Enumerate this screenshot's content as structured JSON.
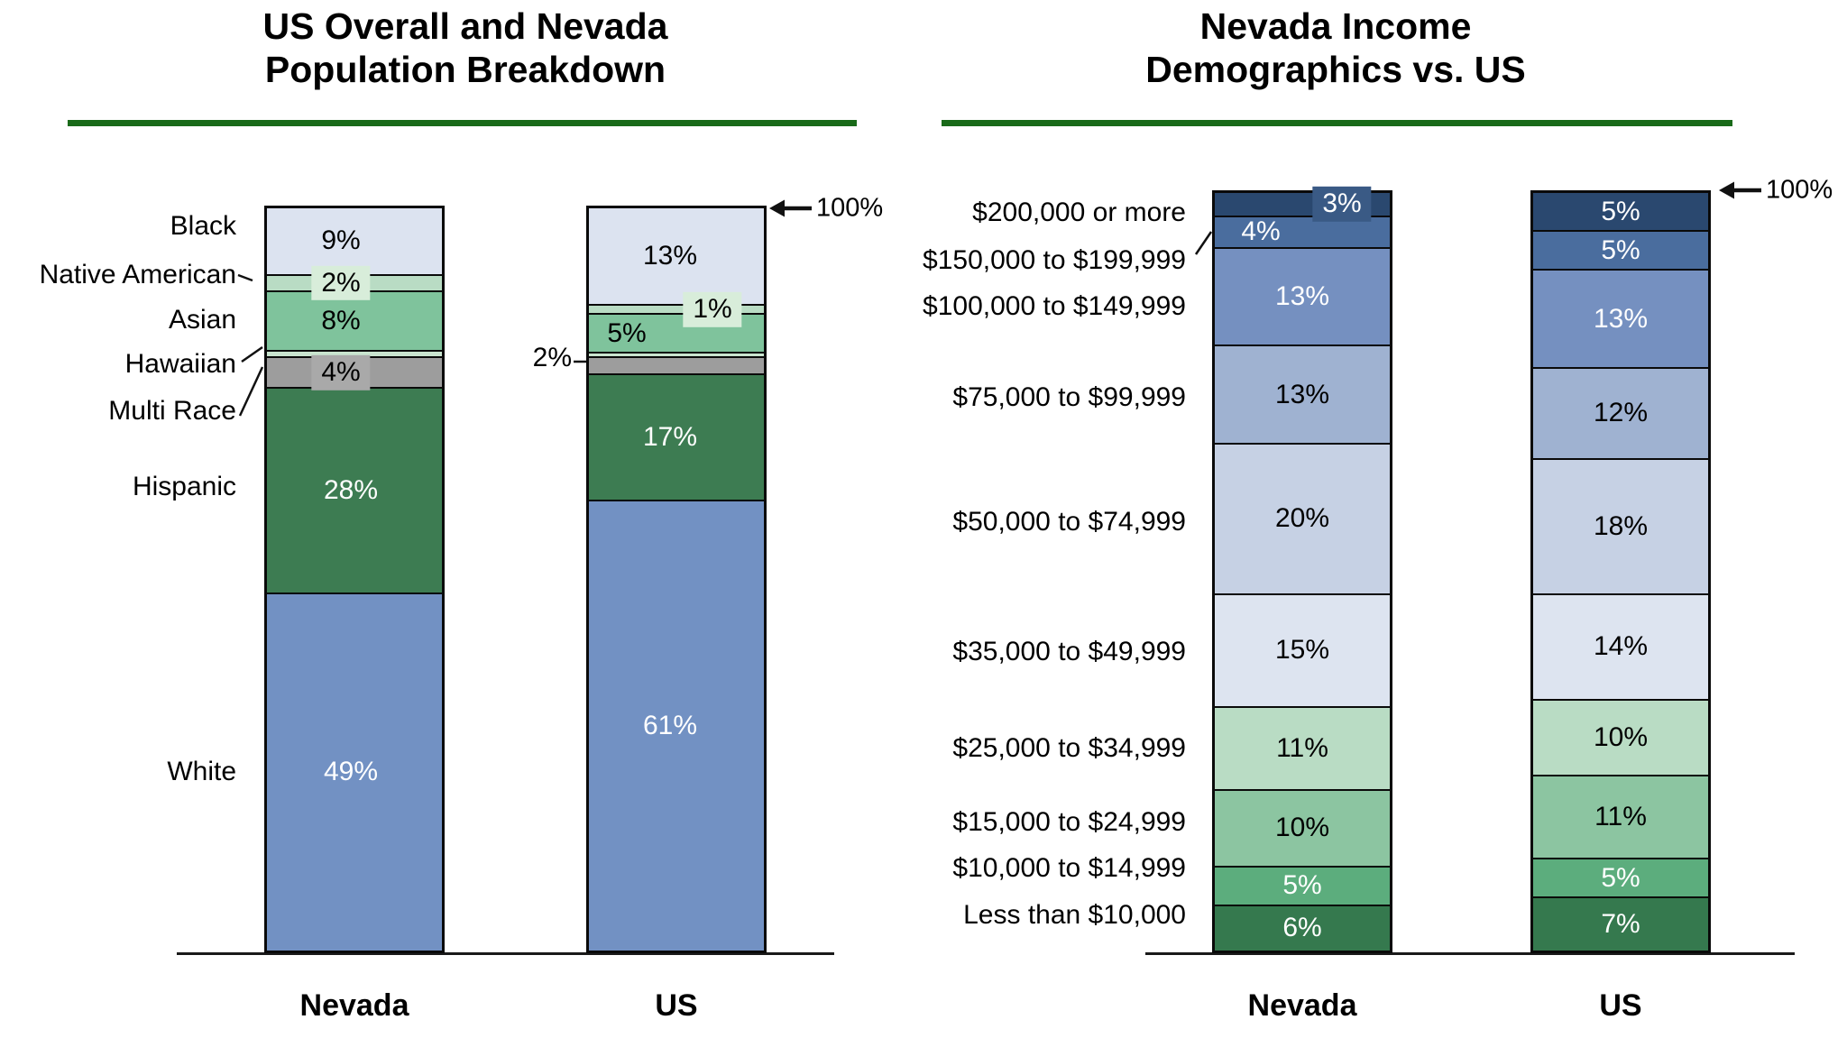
{
  "page": {
    "background": "#ffffff",
    "accent_green": "#196a19",
    "border_color": "#0a0a0a"
  },
  "chart_data": [
    {
      "type": "stacked-bar",
      "title": "US Overall and Nevada Population Breakdown",
      "title_lines": [
        "US Overall and Nevada",
        "Population Breakdown"
      ],
      "axis_annotation": "100%",
      "ylim": [
        0,
        100
      ],
      "stack_order": "top-to-bottom",
      "grid": false,
      "legend": "none (category labels at left of bars)",
      "categories": [
        "Black",
        "Native American",
        "Asian",
        "Hawaiian",
        "Multi Race",
        "Hispanic",
        "White"
      ],
      "colors": [
        "#dce3f0",
        "#b9dcc4",
        "#7fc39c",
        "#c9e4cf",
        "#9d9d9d",
        "#3d7c52",
        "#7291c3"
      ],
      "label_text_colors": [
        "#000000",
        "#000000",
        "#000000",
        null,
        "#000000",
        "#ffffff",
        "#ffffff"
      ],
      "series": [
        {
          "name": "Nevada",
          "values": [
            9,
            2,
            8,
            0.6,
            4,
            28,
            49
          ],
          "labels": [
            "9%",
            "2%",
            "8%",
            null,
            "4%",
            "28%",
            "49%"
          ],
          "label_styles": [
            "plain",
            "boxed",
            "plain",
            null,
            "boxed",
            "plain",
            "plain"
          ],
          "label_box_fills": [
            null,
            "#d8edda",
            null,
            null,
            "#a9a9a9",
            null,
            null
          ]
        },
        {
          "name": "US",
          "values": [
            13,
            1,
            5,
            0.4,
            2,
            17,
            61
          ],
          "labels": [
            "13%",
            "1%",
            "5%",
            null,
            "2%",
            "17%",
            "61%"
          ],
          "label_styles": [
            "plain",
            "boxed",
            "plain",
            null,
            "outside-left",
            "plain",
            "plain"
          ],
          "label_box_fills": [
            null,
            "#d8edda",
            null,
            null,
            null,
            null,
            null
          ]
        }
      ]
    },
    {
      "type": "stacked-bar",
      "title": "Nevada Income Demographics vs. US",
      "title_lines": [
        "Nevada Income",
        "Demographics vs. US"
      ],
      "axis_annotation": "100%",
      "ylim": [
        0,
        100
      ],
      "stack_order": "top-to-bottom",
      "grid": false,
      "legend": "none (income bracket labels at left of bars)",
      "categories": [
        "$200,000 or more",
        "$150,000 to $199,999",
        "$100,000 to $149,999",
        "$75,000 to $99,999",
        "$50,000 to $74,999",
        "$35,000 to $49,999",
        "$25,000 to $34,999",
        "$15,000 to $24,999",
        "$10,000 to $14,999",
        "Less than $10,000"
      ],
      "colors": [
        "#2a486f",
        "#4a6d9e",
        "#7590c0",
        "#9fb2d1",
        "#c6d1e4",
        "#dde4f0",
        "#b9dcc4",
        "#8cc5a1",
        "#5cad7d",
        "#35794e"
      ],
      "label_text_colors": [
        "#ffffff",
        "#ffffff",
        "#ffffff",
        "#000000",
        "#000000",
        "#000000",
        "#000000",
        "#000000",
        "#ffffff",
        "#ffffff"
      ],
      "series": [
        {
          "name": "Nevada",
          "values": [
            3,
            4,
            13,
            13,
            20,
            15,
            11,
            10,
            5,
            6
          ],
          "labels": [
            "3%",
            "4%",
            "13%",
            "13%",
            "20%",
            "15%",
            "11%",
            "10%",
            "5%",
            "6%"
          ],
          "label_styles": [
            "boxed",
            "plain",
            "plain",
            "plain",
            "plain",
            "plain",
            "plain",
            "plain",
            "plain",
            "plain"
          ],
          "label_box_fills": [
            "#3a5a85",
            null,
            null,
            null,
            null,
            null,
            null,
            null,
            null,
            null
          ]
        },
        {
          "name": "US",
          "values": [
            5,
            5,
            13,
            12,
            18,
            14,
            10,
            11,
            5,
            7
          ],
          "labels": [
            "5%",
            "5%",
            "13%",
            "12%",
            "18%",
            "14%",
            "10%",
            "11%",
            "5%",
            "7%"
          ],
          "label_styles": [
            "plain",
            "plain",
            "plain",
            "plain",
            "plain",
            "plain",
            "plain",
            "plain",
            "plain",
            "plain"
          ],
          "label_box_fills": [
            null,
            null,
            null,
            null,
            null,
            null,
            null,
            null,
            null,
            null
          ]
        }
      ]
    }
  ]
}
